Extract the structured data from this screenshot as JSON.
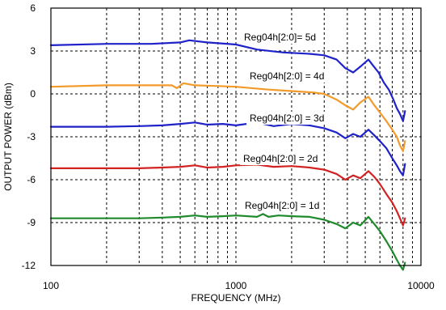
{
  "chart_data": {
    "type": "line",
    "title": "",
    "xlabel": "FREQUENCY (MHz)",
    "ylabel": "OUTPUT POWER (dBm)",
    "x_scale": "log",
    "xlim": [
      100,
      10000
    ],
    "ylim": [
      -12,
      6
    ],
    "x_ticks": [
      "100",
      "1000",
      "10000"
    ],
    "y_ticks": [
      "6",
      "3",
      "0",
      "-3",
      "-6",
      "-9",
      "-12"
    ],
    "grid": true,
    "series": [
      {
        "name": "Reg04h[2:0]= 5d",
        "color": "#1f22c9",
        "x": [
          100,
          200,
          350,
          500,
          560,
          700,
          1000,
          1300,
          1800,
          2500,
          3000,
          3500,
          3900,
          4300,
          4700,
          5200,
          5500,
          5900,
          6300,
          6700,
          7100,
          7400,
          7700,
          8000,
          8200
        ],
        "y": [
          3.4,
          3.5,
          3.5,
          3.6,
          3.75,
          3.6,
          3.45,
          3.1,
          2.9,
          2.8,
          2.7,
          2.4,
          1.8,
          1.5,
          1.9,
          2.4,
          2.0,
          1.5,
          0.8,
          0.3,
          -0.4,
          -1.0,
          -1.4,
          -1.9,
          -1.2
        ]
      },
      {
        "name": "Reg04h[2:0] = 4d",
        "color": "#f39a2a",
        "x": [
          100,
          200,
          350,
          450,
          480,
          520,
          600,
          800,
          1000,
          1500,
          2000,
          2600,
          3000,
          3500,
          3900,
          4300,
          4700,
          5200,
          5600,
          6000,
          6500,
          7000,
          7400,
          7700,
          8000,
          8200
        ],
        "y": [
          0.5,
          0.6,
          0.6,
          0.6,
          0.4,
          0.75,
          0.6,
          0.55,
          0.5,
          0.3,
          0.2,
          0.1,
          0.0,
          -0.4,
          -0.8,
          -1.1,
          -0.6,
          -0.2,
          -0.8,
          -1.3,
          -1.9,
          -2.5,
          -3.0,
          -3.6,
          -4.0,
          -3.3
        ]
      },
      {
        "name": "Reg04h[2:0] = 3d",
        "color": "#1f22c9",
        "x": [
          100,
          200,
          300,
          400,
          500,
          600,
          700,
          850,
          1000,
          1300,
          1600,
          2000,
          2500,
          3000,
          3500,
          3900,
          4300,
          4700,
          5200,
          5600,
          6000,
          6500,
          7000,
          7400,
          7700,
          8000,
          8200
        ],
        "y": [
          -2.3,
          -2.3,
          -2.25,
          -2.2,
          -2.1,
          -2.0,
          -2.15,
          -2.1,
          -2.2,
          -2.0,
          -2.25,
          -2.1,
          -2.2,
          -2.4,
          -2.7,
          -3.1,
          -2.8,
          -3.0,
          -2.5,
          -2.9,
          -3.3,
          -3.8,
          -4.5,
          -5.0,
          -5.4,
          -5.7,
          -4.9
        ]
      },
      {
        "name": "Reg04h[2:0] = 2d",
        "color": "#d32222",
        "x": [
          100,
          200,
          300,
          400,
          500,
          600,
          700,
          850,
          1000,
          1300,
          1600,
          2000,
          2500,
          3000,
          3500,
          3900,
          4300,
          4700,
          5200,
          5600,
          6000,
          6500,
          7000,
          7400,
          7700,
          8000,
          8200
        ],
        "y": [
          -5.2,
          -5.2,
          -5.2,
          -5.15,
          -5.1,
          -5.0,
          -5.15,
          -5.1,
          -5.0,
          -4.95,
          -5.1,
          -5.05,
          -5.15,
          -5.3,
          -5.6,
          -6.0,
          -5.7,
          -5.9,
          -5.4,
          -5.8,
          -6.3,
          -7.0,
          -7.6,
          -8.2,
          -8.7,
          -9.2,
          -8.7
        ]
      },
      {
        "name": "Reg04h[2:0] = 1d",
        "color": "#1f8a2c",
        "x": [
          100,
          200,
          300,
          400,
          500,
          600,
          700,
          850,
          1000,
          1300,
          1400,
          1500,
          1700,
          2000,
          2500,
          3000,
          3500,
          3900,
          4300,
          4700,
          5200,
          5600,
          6000,
          6500,
          7000,
          7400,
          7700,
          8000,
          8200
        ],
        "y": [
          -8.7,
          -8.7,
          -8.7,
          -8.65,
          -8.6,
          -8.5,
          -8.6,
          -8.55,
          -8.5,
          -8.6,
          -8.4,
          -8.6,
          -8.5,
          -8.55,
          -8.6,
          -8.8,
          -9.1,
          -9.4,
          -9.0,
          -9.2,
          -8.6,
          -9.1,
          -9.6,
          -10.3,
          -11.0,
          -11.6,
          -12.0,
          -12.3,
          -11.8
        ]
      }
    ]
  }
}
